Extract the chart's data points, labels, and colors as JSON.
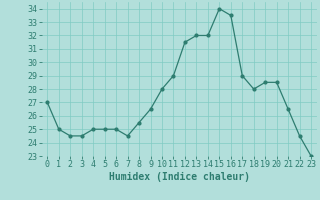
{
  "xlabel": "Humidex (Indice chaleur)",
  "x": [
    0,
    1,
    2,
    3,
    4,
    5,
    6,
    7,
    8,
    9,
    10,
    11,
    12,
    13,
    14,
    15,
    16,
    17,
    18,
    19,
    20,
    21,
    22,
    23
  ],
  "y": [
    27,
    25,
    24.5,
    24.5,
    25,
    25,
    25,
    24.5,
    25.5,
    26.5,
    28,
    29,
    31.5,
    32,
    32,
    34,
    33.5,
    29,
    28,
    28.5,
    28.5,
    26.5,
    24.5,
    23
  ],
  "line_color": "#2e7d70",
  "bg_color": "#b2dfdb",
  "grid_color": "#80cbc4",
  "tick_color": "#2e7d70",
  "ylim": [
    23,
    34.5
  ],
  "yticks": [
    23,
    24,
    25,
    26,
    27,
    28,
    29,
    30,
    31,
    32,
    33,
    34
  ],
  "xlabel_fontsize": 7,
  "tick_fontsize": 6
}
